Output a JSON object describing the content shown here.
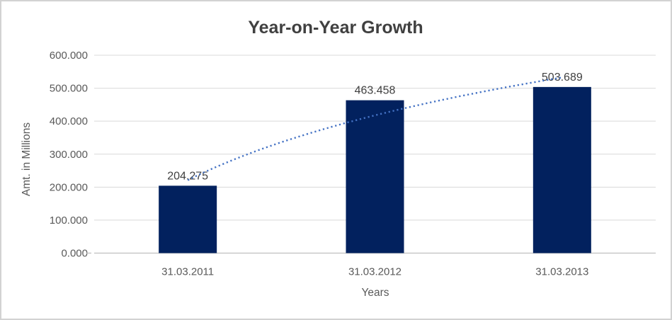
{
  "window": {
    "background": "#FFFFFF",
    "border_color": "#D2D2D2"
  },
  "chart_data": {
    "type": "bar",
    "title": "Year-on-Year Growth",
    "xlabel": "Years",
    "ylabel": "Amt. in Millions",
    "categories": [
      "31.03.2011",
      "31.03.2012",
      "31.03.2013"
    ],
    "values": [
      204.275,
      463.458,
      503.689
    ],
    "data_labels": [
      "204.275",
      "463.458",
      "503.689"
    ],
    "ylim": [
      0,
      600
    ],
    "y_tick_step": 100,
    "y_tick_labels": [
      "0.000",
      "100.000",
      "200.000",
      "300.000",
      "400.000",
      "500.000",
      "600.000"
    ],
    "grid": true,
    "legend": "none",
    "bar_color": "#02215E",
    "trendline": {
      "type": "logarithmic",
      "style": "dotted",
      "color": "#4472C4"
    },
    "colors": {
      "title": "#404040",
      "axis_text": "#595959",
      "data_label": "#404040",
      "gridline": "#D9D9D9",
      "axis_line": "#BFBFBF"
    }
  }
}
